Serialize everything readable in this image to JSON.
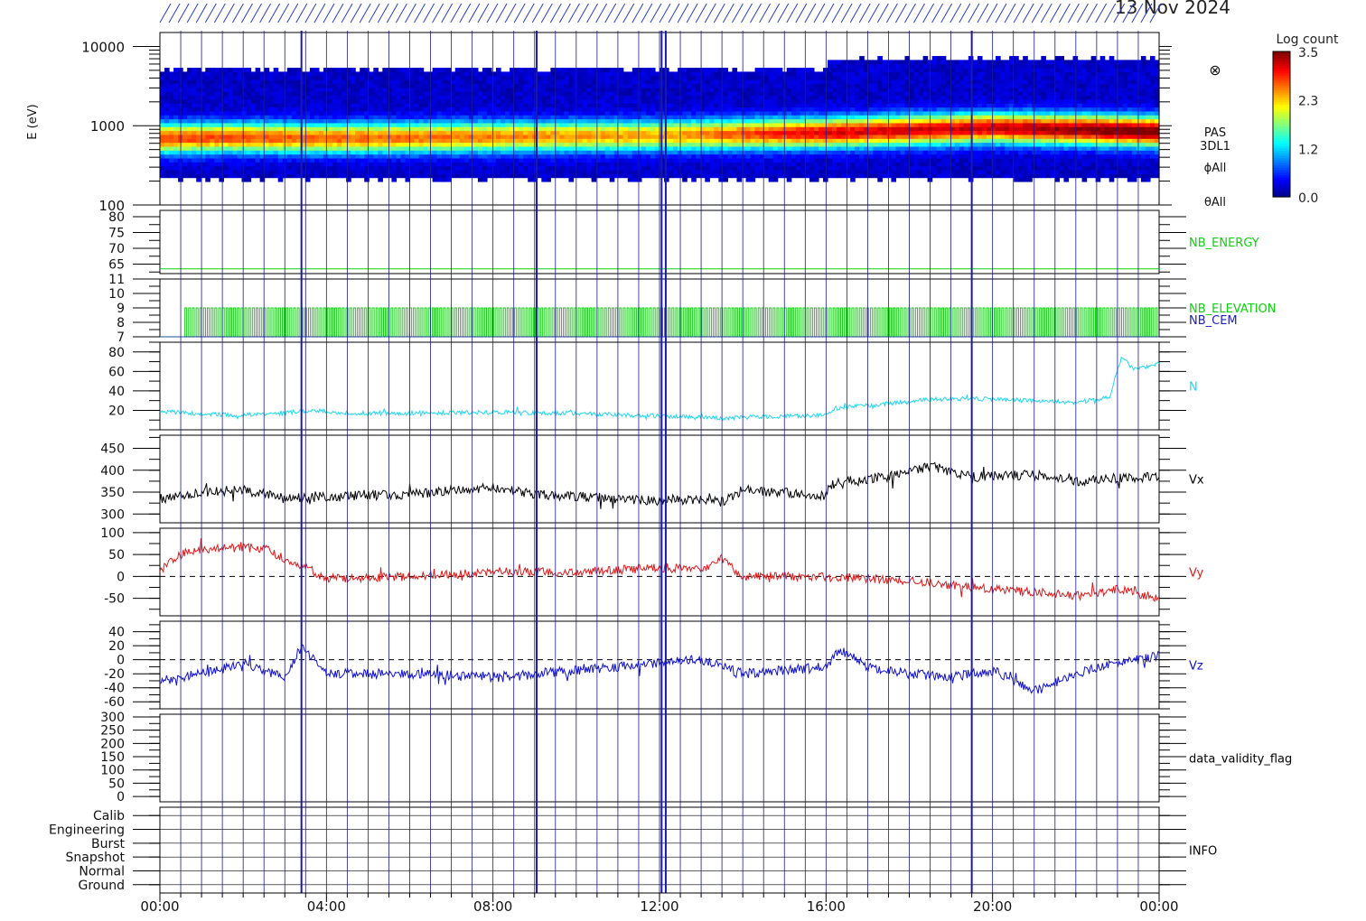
{
  "header": {
    "date_text": "13 Nov 2024"
  },
  "x_axis": {
    "range_hours": [
      0,
      24
    ],
    "ticks": [
      {
        "hour": 0,
        "label": "00:00"
      },
      {
        "hour": 4,
        "label": "04:00"
      },
      {
        "hour": 8,
        "label": "08:00"
      },
      {
        "hour": 12,
        "label": "12:00"
      },
      {
        "hour": 16,
        "label": "16:00"
      },
      {
        "hour": 20,
        "label": "20:00"
      },
      {
        "hour": 24,
        "label": "00:00"
      }
    ]
  },
  "colorbar": {
    "title": "Log count",
    "ticks": [
      "3.5",
      "2.3",
      "1.2",
      "0.0"
    ],
    "range": [
      0.0,
      3.5
    ]
  },
  "event_lines_hours": [
    3.4,
    9.05,
    12.05,
    12.15,
    19.5
  ],
  "colors": {
    "n_series": "#1ed8f0",
    "vx_series": "#000000",
    "vy_series": "#e01818",
    "vz_series": "#1010d0",
    "nb_green": "#10d010",
    "nb_cem_label": "#2020c0",
    "event_line": "#1a1aa8",
    "grid_line": "#1a1a90"
  },
  "spectrogram": {
    "ylabel": "E (eV)",
    "log_scale": true,
    "y_range": [
      100,
      15000
    ],
    "y_tick_labels": [
      "10000",
      "1000",
      "100"
    ],
    "y_tick_values": [
      10000,
      1000,
      100
    ],
    "side_labels": [
      "PAS",
      "3DL1",
      "ϕAll",
      "θAll"
    ],
    "peak_energy_eV": [
      {
        "t": 0,
        "e": 700
      },
      {
        "t": 2,
        "e": 720
      },
      {
        "t": 4,
        "e": 700
      },
      {
        "t": 8,
        "e": 730
      },
      {
        "t": 12,
        "e": 760
      },
      {
        "t": 16,
        "e": 820
      },
      {
        "t": 20,
        "e": 950
      },
      {
        "t": 23,
        "e": 880
      },
      {
        "t": 24,
        "e": 850
      }
    ],
    "peak_level": [
      {
        "t": 0,
        "v": 2.6
      },
      {
        "t": 8,
        "v": 2.4
      },
      {
        "t": 12,
        "v": 2.2
      },
      {
        "t": 16,
        "v": 2.9
      },
      {
        "t": 20,
        "v": 3.0
      },
      {
        "t": 23,
        "v": 3.3
      },
      {
        "t": 24,
        "v": 3.4
      }
    ]
  },
  "panels": [
    {
      "id": "nb-energy",
      "label": "NB_ENERGY",
      "label_color": "#10d010",
      "y_range": [
        62,
        82
      ],
      "y_tick_labels": [
        "80",
        "75",
        "70",
        "65"
      ],
      "y_tick_values": [
        80,
        75,
        70,
        65
      ],
      "type": "flat",
      "value": 63.5
    },
    {
      "id": "nb-elevation",
      "label": "NB_ELEVATION",
      "label_color": "#10d010",
      "label2": "NB_CEM",
      "label2_color": "#2020c0",
      "y_range": [
        7,
        11
      ],
      "y_tick_labels": [
        "11",
        "10",
        "9",
        "8",
        "7"
      ],
      "y_tick_values": [
        11,
        10,
        9,
        8,
        7
      ],
      "type": "square",
      "low": 7,
      "high": 9,
      "start_hour": 0.6
    },
    {
      "id": "n",
      "label": "N",
      "label_color": "#1ed8f0",
      "y_range": [
        0,
        90
      ],
      "y_tick_labels": [
        "80",
        "60",
        "40",
        "20"
      ],
      "y_tick_values": [
        80,
        60,
        40,
        20
      ],
      "type": "series",
      "noise": 2.2,
      "points": [
        [
          0,
          19
        ],
        [
          1,
          16
        ],
        [
          2,
          15
        ],
        [
          3,
          17
        ],
        [
          3.6,
          20
        ],
        [
          4.5,
          17
        ],
        [
          6,
          17
        ],
        [
          8,
          18
        ],
        [
          10,
          17
        ],
        [
          12,
          14
        ],
        [
          13.5,
          12
        ],
        [
          15,
          14
        ],
        [
          16,
          15
        ],
        [
          16.2,
          22
        ],
        [
          17.5,
          27
        ],
        [
          18.3,
          31
        ],
        [
          19.5,
          32
        ],
        [
          21,
          30
        ],
        [
          22,
          28
        ],
        [
          22.8,
          33
        ],
        [
          23.1,
          75
        ],
        [
          23.4,
          62
        ],
        [
          24,
          68
        ]
      ]
    },
    {
      "id": "vx",
      "label": "Vx",
      "label_color": "#000000",
      "y_range": [
        280,
        480
      ],
      "y_tick_labels": [
        "450",
        "400",
        "350",
        "300"
      ],
      "y_tick_values": [
        450,
        400,
        350,
        300
      ],
      "type": "series",
      "noise": 11,
      "points": [
        [
          0,
          335
        ],
        [
          1,
          350
        ],
        [
          2,
          355
        ],
        [
          3,
          335
        ],
        [
          4,
          340
        ],
        [
          6,
          345
        ],
        [
          8,
          362
        ],
        [
          9,
          345
        ],
        [
          10,
          340
        ],
        [
          12,
          330
        ],
        [
          13,
          335
        ],
        [
          13.5,
          328
        ],
        [
          14,
          355
        ],
        [
          16,
          342
        ],
        [
          16.1,
          372
        ],
        [
          17.5,
          385
        ],
        [
          18.5,
          410
        ],
        [
          19.5,
          385
        ],
        [
          21,
          390
        ],
        [
          22,
          375
        ],
        [
          23,
          382
        ],
        [
          24,
          385
        ]
      ]
    },
    {
      "id": "vy",
      "label": "Vy",
      "label_color": "#e01818",
      "y_range": [
        -90,
        110
      ],
      "y_tick_labels": [
        "100",
        "50",
        "0",
        "-50"
      ],
      "y_tick_values": [
        100,
        50,
        0,
        -50
      ],
      "zero_line": true,
      "type": "series",
      "noise": 10,
      "points": [
        [
          0,
          15
        ],
        [
          0.6,
          55
        ],
        [
          1.5,
          65
        ],
        [
          2.5,
          65
        ],
        [
          3,
          40
        ],
        [
          3.5,
          20
        ],
        [
          4,
          -5
        ],
        [
          6,
          0
        ],
        [
          8,
          10
        ],
        [
          10,
          10
        ],
        [
          12,
          20
        ],
        [
          13,
          15
        ],
        [
          13.5,
          40
        ],
        [
          14,
          0
        ],
        [
          16,
          0
        ],
        [
          18,
          -10
        ],
        [
          20,
          -30
        ],
        [
          21,
          -35
        ],
        [
          22,
          -45
        ],
        [
          23,
          -30
        ],
        [
          24,
          -50
        ]
      ]
    },
    {
      "id": "vz",
      "label": "Vz",
      "label_color": "#1010d0",
      "y_range": [
        -70,
        55
      ],
      "y_tick_labels": [
        "40",
        "20",
        "0",
        "-20",
        "-40",
        "-60"
      ],
      "y_tick_values": [
        40,
        20,
        0,
        -20,
        -40,
        -60
      ],
      "zero_line": true,
      "type": "series",
      "noise": 7,
      "points": [
        [
          0,
          -30
        ],
        [
          1,
          -20
        ],
        [
          2,
          -5
        ],
        [
          3,
          -25
        ],
        [
          3.4,
          20
        ],
        [
          4,
          -20
        ],
        [
          6,
          -20
        ],
        [
          8,
          -25
        ],
        [
          10,
          -15
        ],
        [
          12,
          -5
        ],
        [
          13,
          0
        ],
        [
          14,
          -20
        ],
        [
          16,
          -10
        ],
        [
          16.3,
          15
        ],
        [
          17,
          -10
        ],
        [
          18,
          -20
        ],
        [
          19,
          -25
        ],
        [
          20,
          -15
        ],
        [
          21,
          -45
        ],
        [
          22,
          -20
        ],
        [
          23,
          -5
        ],
        [
          24,
          5
        ]
      ]
    },
    {
      "id": "validity",
      "label": "data_validity_flag",
      "label_color": "#000000",
      "y_range": [
        -20,
        310
      ],
      "y_tick_labels": [
        "300",
        "250",
        "200",
        "150",
        "100",
        "50",
        "0"
      ],
      "y_tick_values": [
        300,
        250,
        200,
        150,
        100,
        50,
        0
      ],
      "type": "empty"
    },
    {
      "id": "info",
      "label": "INFO",
      "label_color": "#000000",
      "y_range": [
        -0.6,
        5.6
      ],
      "y_tick_labels": [
        "Calib",
        "Engineering",
        "Burst",
        "Snapshot",
        "Normal",
        "Ground"
      ],
      "y_tick_values": [
        5,
        4,
        3,
        2,
        1,
        0
      ],
      "type": "empty"
    }
  ]
}
